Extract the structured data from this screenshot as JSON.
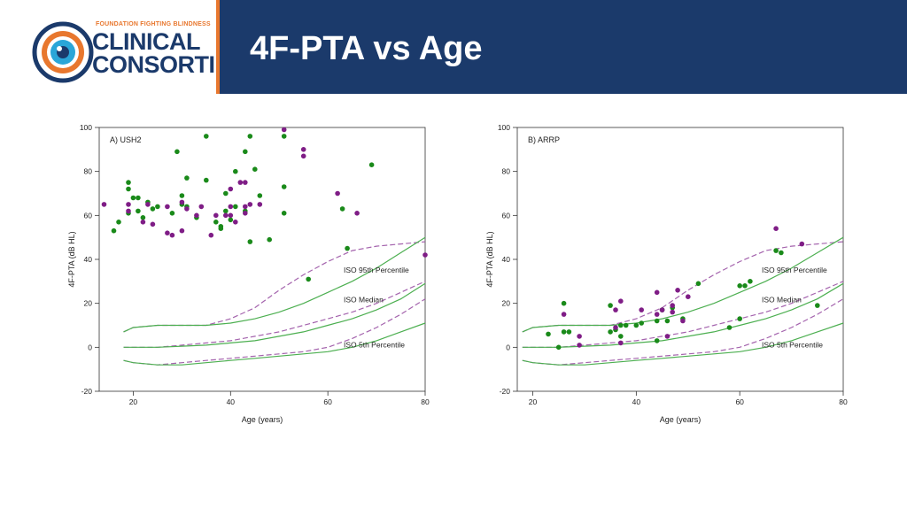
{
  "header": {
    "logo_tagline": "FOUNDATION FIGHTING BLINDNESS",
    "logo_line1": "CLINICAL",
    "logo_line2": "CONSORTIUM",
    "title": "4F-PTA vs Age"
  },
  "colors": {
    "banner": "#1b3a6b",
    "accent": "#e8772e",
    "green": "#1a8a1a",
    "purple": "#7f1d86",
    "curve_green": "#4caf50",
    "curve_purple": "#a463ad"
  },
  "chart_data": [
    {
      "type": "scatter",
      "panel_label": "A) USH2",
      "xlabel": "Age (years)",
      "ylabel": "4F-PTA (dB HL)",
      "xlim": [
        13,
        80
      ],
      "ylim": [
        -20,
        100
      ],
      "xticks": [
        20,
        40,
        60,
        80
      ],
      "yticks": [
        -20,
        0,
        20,
        40,
        60,
        80,
        100
      ],
      "grid": false,
      "curve_labels": [
        "ISO 95th Percentile",
        "ISO Median",
        "ISO 5th Percentile"
      ],
      "series": [
        {
          "color": "green",
          "points": [
            [
              16,
              53
            ],
            [
              17,
              57
            ],
            [
              19,
              75
            ],
            [
              19,
              72
            ],
            [
              19,
              61
            ],
            [
              20,
              68
            ],
            [
              21,
              68
            ],
            [
              21,
              62
            ],
            [
              22,
              59
            ],
            [
              23,
              66
            ],
            [
              24,
              63
            ],
            [
              25,
              64
            ],
            [
              28,
              61
            ],
            [
              29,
              89
            ],
            [
              30,
              69
            ],
            [
              30,
              65
            ],
            [
              31,
              77
            ],
            [
              31,
              64
            ],
            [
              33,
              59
            ],
            [
              35,
              96
            ],
            [
              35,
              76
            ],
            [
              37,
              57
            ],
            [
              38,
              54
            ],
            [
              38,
              55
            ],
            [
              39,
              62
            ],
            [
              39,
              70
            ],
            [
              40,
              58
            ],
            [
              41,
              64
            ],
            [
              41,
              80
            ],
            [
              43,
              89
            ],
            [
              43,
              62
            ],
            [
              44,
              48
            ],
            [
              44,
              96
            ],
            [
              45,
              81
            ],
            [
              46,
              69
            ],
            [
              48,
              49
            ],
            [
              51,
              96
            ],
            [
              51,
              73
            ],
            [
              51,
              61
            ],
            [
              56,
              31
            ],
            [
              63,
              63
            ],
            [
              64,
              45
            ],
            [
              69,
              83
            ]
          ]
        },
        {
          "color": "purple",
          "points": [
            [
              14,
              65
            ],
            [
              19,
              65
            ],
            [
              19,
              62
            ],
            [
              22,
              57
            ],
            [
              23,
              65
            ],
            [
              24,
              56
            ],
            [
              27,
              64
            ],
            [
              27,
              52
            ],
            [
              28,
              51
            ],
            [
              30,
              53
            ],
            [
              30,
              66
            ],
            [
              31,
              63
            ],
            [
              33,
              60
            ],
            [
              34,
              64
            ],
            [
              36,
              51
            ],
            [
              37,
              60
            ],
            [
              39,
              60
            ],
            [
              40,
              64
            ],
            [
              40,
              60
            ],
            [
              40,
              72
            ],
            [
              41,
              57
            ],
            [
              42,
              75
            ],
            [
              43,
              64
            ],
            [
              43,
              61
            ],
            [
              43,
              75
            ],
            [
              44,
              65
            ],
            [
              46,
              65
            ],
            [
              51,
              99
            ],
            [
              55,
              90
            ],
            [
              55,
              87
            ],
            [
              62,
              70
            ],
            [
              66,
              61
            ],
            [
              80,
              42
            ]
          ]
        }
      ],
      "curves": [
        {
          "name": "ISO 95th Percentile",
          "style": "dashed",
          "color": "purple",
          "x": [
            18,
            20,
            25,
            30,
            35,
            40,
            45,
            50,
            55,
            60,
            65,
            70,
            75,
            80
          ],
          "y": [
            7,
            9,
            10,
            10,
            10,
            13,
            18,
            26,
            33,
            39,
            44,
            46,
            47,
            48
          ]
        },
        {
          "name": "ISO 95th Percentile",
          "style": "solid",
          "color": "green",
          "x": [
            18,
            20,
            25,
            30,
            35,
            40,
            45,
            50,
            55,
            60,
            65,
            70,
            75,
            80
          ],
          "y": [
            7,
            9,
            10,
            10,
            10,
            11,
            13,
            16,
            20,
            25,
            30,
            36,
            43,
            50
          ]
        },
        {
          "name": "ISO Median",
          "style": "dashed",
          "color": "purple",
          "x": [
            18,
            20,
            25,
            30,
            35,
            40,
            45,
            50,
            55,
            60,
            65,
            70,
            75,
            80
          ],
          "y": [
            0,
            0,
            0,
            1,
            2,
            3,
            5,
            7,
            10,
            13,
            16,
            20,
            25,
            30
          ]
        },
        {
          "name": "ISO Median",
          "style": "solid",
          "color": "green",
          "x": [
            18,
            20,
            25,
            30,
            35,
            40,
            45,
            50,
            55,
            60,
            65,
            70,
            75,
            80
          ],
          "y": [
            0,
            0,
            0,
            0.5,
            1,
            2,
            3,
            5,
            7,
            10,
            13,
            17,
            22,
            29
          ]
        },
        {
          "name": "ISO 5th Percentile",
          "style": "dashed",
          "color": "purple",
          "x": [
            18,
            20,
            25,
            30,
            35,
            40,
            45,
            50,
            55,
            60,
            65,
            70,
            75,
            80
          ],
          "y": [
            -6,
            -7,
            -8,
            -7,
            -6,
            -5,
            -4,
            -3,
            -2,
            0,
            4,
            9,
            15,
            22
          ]
        },
        {
          "name": "ISO 5th Percentile",
          "style": "solid",
          "color": "green",
          "x": [
            18,
            20,
            25,
            30,
            35,
            40,
            45,
            50,
            55,
            60,
            65,
            70,
            75,
            80
          ],
          "y": [
            -6,
            -7,
            -8,
            -8,
            -7,
            -6,
            -5,
            -4,
            -3,
            -2,
            0,
            3,
            7,
            11
          ]
        }
      ]
    },
    {
      "type": "scatter",
      "panel_label": "B) ARRP",
      "xlabel": "Age (years)",
      "ylabel": "4F-PTA (dB HL)",
      "xlim": [
        17,
        80
      ],
      "ylim": [
        -20,
        100
      ],
      "xticks": [
        20,
        40,
        60,
        80
      ],
      "yticks": [
        -20,
        0,
        20,
        40,
        60,
        80,
        100
      ],
      "grid": false,
      "curve_labels": [
        "ISO 95th Percentile",
        "ISO Median",
        "ISO 5th Percentile"
      ],
      "series": [
        {
          "color": "green",
          "points": [
            [
              23,
              6
            ],
            [
              25,
              0
            ],
            [
              26,
              20
            ],
            [
              26,
              7
            ],
            [
              27,
              7
            ],
            [
              35,
              7
            ],
            [
              35,
              19
            ],
            [
              36,
              8
            ],
            [
              37,
              5
            ],
            [
              37,
              10
            ],
            [
              38,
              10
            ],
            [
              40,
              10
            ],
            [
              41,
              11
            ],
            [
              44,
              12
            ],
            [
              44,
              3
            ],
            [
              45,
              17
            ],
            [
              46,
              12
            ],
            [
              47,
              18
            ],
            [
              49,
              13
            ],
            [
              52,
              29
            ],
            [
              58,
              9
            ],
            [
              60,
              13
            ],
            [
              60,
              28
            ],
            [
              61,
              28
            ],
            [
              62,
              30
            ],
            [
              67,
              44
            ],
            [
              68,
              43
            ],
            [
              75,
              19
            ]
          ]
        },
        {
          "color": "purple",
          "points": [
            [
              26,
              15
            ],
            [
              29,
              5
            ],
            [
              29,
              1
            ],
            [
              36,
              17
            ],
            [
              36,
              9
            ],
            [
              37,
              21
            ],
            [
              37,
              2
            ],
            [
              41,
              17
            ],
            [
              44,
              25
            ],
            [
              44,
              15
            ],
            [
              45,
              17
            ],
            [
              46,
              5
            ],
            [
              47,
              19
            ],
            [
              47,
              16
            ],
            [
              48,
              26
            ],
            [
              49,
              12
            ],
            [
              50,
              23
            ],
            [
              67,
              54
            ],
            [
              72,
              47
            ]
          ]
        }
      ],
      "curves": [
        {
          "name": "ISO 95th Percentile",
          "style": "dashed",
          "color": "purple",
          "x": [
            18,
            20,
            25,
            30,
            35,
            40,
            45,
            50,
            55,
            60,
            65,
            70,
            75,
            80
          ],
          "y": [
            7,
            9,
            10,
            10,
            10,
            13,
            18,
            26,
            33,
            39,
            44,
            46,
            47,
            48
          ]
        },
        {
          "name": "ISO 95th Percentile",
          "style": "solid",
          "color": "green",
          "x": [
            18,
            20,
            25,
            30,
            35,
            40,
            45,
            50,
            55,
            60,
            65,
            70,
            75,
            80
          ],
          "y": [
            7,
            9,
            10,
            10,
            10,
            11,
            13,
            16,
            20,
            25,
            30,
            36,
            43,
            50
          ]
        },
        {
          "name": "ISO Median",
          "style": "dashed",
          "color": "purple",
          "x": [
            18,
            20,
            25,
            30,
            35,
            40,
            45,
            50,
            55,
            60,
            65,
            70,
            75,
            80
          ],
          "y": [
            0,
            0,
            0,
            1,
            2,
            3,
            5,
            7,
            10,
            13,
            16,
            20,
            25,
            30
          ]
        },
        {
          "name": "ISO Median",
          "style": "solid",
          "color": "green",
          "x": [
            18,
            20,
            25,
            30,
            35,
            40,
            45,
            50,
            55,
            60,
            65,
            70,
            75,
            80
          ],
          "y": [
            0,
            0,
            0,
            0.5,
            1,
            2,
            3,
            5,
            7,
            10,
            13,
            17,
            22,
            29
          ]
        },
        {
          "name": "ISO 5th Percentile",
          "style": "dashed",
          "color": "purple",
          "x": [
            18,
            20,
            25,
            30,
            35,
            40,
            45,
            50,
            55,
            60,
            65,
            70,
            75,
            80
          ],
          "y": [
            -6,
            -7,
            -8,
            -7,
            -6,
            -5,
            -4,
            -3,
            -2,
            0,
            4,
            9,
            15,
            22
          ]
        },
        {
          "name": "ISO 5th Percentile",
          "style": "solid",
          "color": "green",
          "x": [
            18,
            20,
            25,
            30,
            35,
            40,
            45,
            50,
            55,
            60,
            65,
            70,
            75,
            80
          ],
          "y": [
            -6,
            -7,
            -8,
            -8,
            -7,
            -6,
            -5,
            -4,
            -3,
            -2,
            0,
            3,
            7,
            11
          ]
        }
      ]
    }
  ]
}
